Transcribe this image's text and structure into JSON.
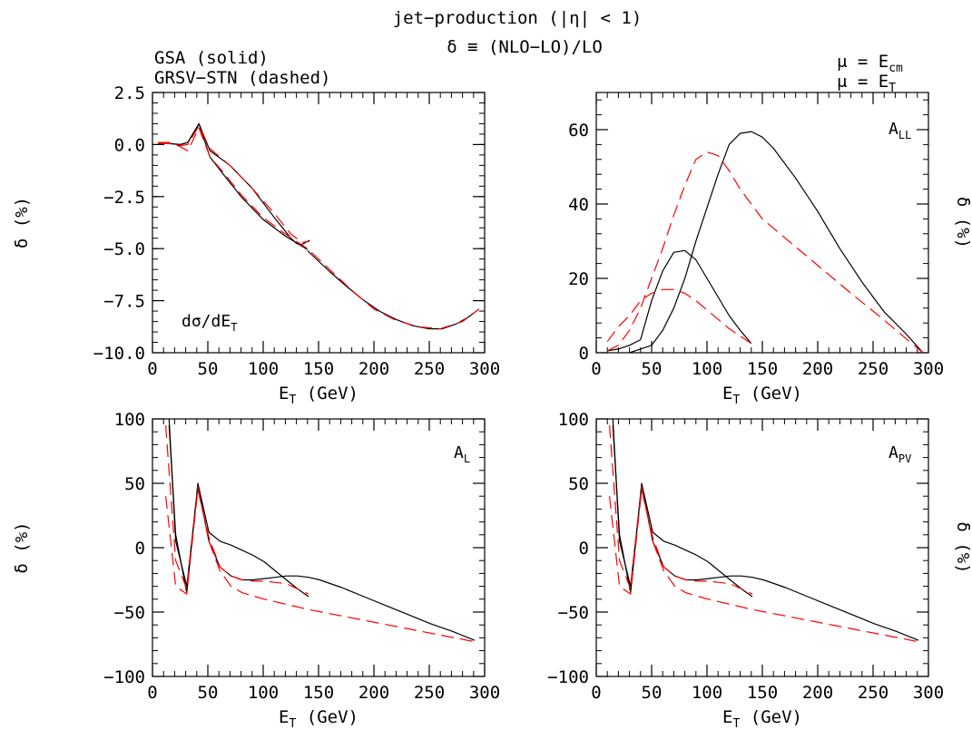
{
  "header": {
    "title": "jet−production (|η| < 1)",
    "definition": "δ ≡ (NLO−LO)/LO",
    "legend_solid": "GSA (solid)",
    "legend_dashed": "GRSV−STN (dashed)",
    "mu_line1_prefix": "μ = E",
    "mu_line1_sub": "cm",
    "mu_line2_prefix": "μ = E",
    "mu_line2_sub": "T"
  },
  "colors": {
    "solid": "#000000",
    "dashed": "#ff0000"
  },
  "chart_data": [
    {
      "type": "line",
      "panel": "top-left",
      "annotation_main": "dσ/dE",
      "annotation_sub": "T",
      "xlabel_main": "E",
      "xlabel_sub": "T",
      "xlabel_rest": " (GeV)",
      "ylabel": "δ (%)",
      "xlim": [
        0,
        300
      ],
      "ylim": [
        -10,
        2.5
      ],
      "xticks": [
        0,
        50,
        100,
        150,
        200,
        250,
        300
      ],
      "xtick_labels": [
        "0",
        "50",
        "100",
        "150",
        "200",
        "250",
        "300"
      ],
      "yticks": [
        -10,
        -7.5,
        -5,
        -2.5,
        0,
        2.5
      ],
      "ytick_labels": [
        "−10.0",
        "−7.5",
        "−5.0",
        "−2.5",
        "0.0",
        "2.5"
      ],
      "minor_x": 10,
      "minor_y": 0.5,
      "series": [
        {
          "style": "solid",
          "x": [
            5,
            15,
            25,
            32,
            42,
            52,
            70,
            90,
            110,
            125,
            130,
            135,
            142
          ],
          "y": [
            0.05,
            0.05,
            0.0,
            0.1,
            1.0,
            -0.3,
            -1.0,
            -2.1,
            -3.5,
            -4.5,
            -4.75,
            -4.8,
            -4.6
          ]
        },
        {
          "style": "solid",
          "x": [
            140,
            150,
            160,
            175,
            190,
            205,
            220,
            235,
            250,
            262,
            275,
            285,
            295
          ],
          "y": [
            -5.1,
            -5.6,
            -6.1,
            -6.8,
            -7.45,
            -8.0,
            -8.4,
            -8.7,
            -8.85,
            -8.85,
            -8.6,
            -8.3,
            -7.9
          ]
        },
        {
          "style": "solid",
          "x": [
            5,
            15,
            25,
            32,
            42,
            52,
            65,
            80,
            100,
            120,
            140
          ],
          "y": [
            0.05,
            0.05,
            0.0,
            0.1,
            1.0,
            -0.6,
            -1.5,
            -2.5,
            -3.6,
            -4.4,
            -5.05
          ]
        },
        {
          "style": "dashed",
          "x": [
            5,
            15,
            25,
            32,
            42,
            52,
            65,
            80,
            100,
            120,
            140,
            160,
            180,
            200,
            220,
            240,
            260,
            280,
            295
          ],
          "y": [
            0.1,
            0.1,
            -0.1,
            -0.3,
            0.8,
            -0.6,
            -1.4,
            -2.4,
            -3.5,
            -4.3,
            -5.0,
            -6.0,
            -7.0,
            -7.9,
            -8.45,
            -8.75,
            -8.85,
            -8.5,
            -7.9
          ]
        },
        {
          "style": "dashed",
          "x": [
            5,
            15,
            25,
            32,
            42,
            52,
            70,
            90,
            110,
            125,
            135,
            142
          ],
          "y": [
            0.05,
            0.05,
            -0.05,
            0.0,
            0.9,
            -0.2,
            -1.0,
            -2.1,
            -3.3,
            -4.3,
            -4.7,
            -4.65
          ]
        }
      ]
    },
    {
      "type": "line",
      "panel": "top-right",
      "annotation_main": "A",
      "annotation_sub": "LL",
      "xlabel_main": "E",
      "xlabel_sub": "T",
      "xlabel_rest": " (GeV)",
      "ylabel": "δ (%)",
      "ylabel_mirrored": true,
      "xlim": [
        0,
        300
      ],
      "ylim": [
        0,
        70
      ],
      "xticks": [
        0,
        50,
        100,
        150,
        200,
        250,
        300
      ],
      "xtick_labels": [
        "0",
        "50",
        "100",
        "150",
        "200",
        "250",
        "300"
      ],
      "yticks": [
        0,
        20,
        40,
        60
      ],
      "ytick_labels": [
        "0",
        "20",
        "40",
        "60"
      ],
      "minor_x": 10,
      "minor_y": 4,
      "series": [
        {
          "style": "solid",
          "x": [
            10,
            20,
            30,
            40,
            50,
            60,
            70,
            80,
            90,
            100,
            110,
            120,
            130,
            140
          ],
          "y": [
            0.5,
            1.0,
            2.0,
            3.5,
            14,
            22,
            27,
            27.5,
            25,
            20,
            15,
            10,
            6,
            2.5
          ]
        },
        {
          "style": "solid",
          "x": [
            30,
            40,
            50,
            60,
            70,
            80,
            90,
            100,
            110,
            120,
            130,
            140,
            150,
            160,
            180,
            200,
            220,
            240,
            260,
            280,
            295
          ],
          "y": [
            0,
            1,
            2,
            6,
            12,
            20,
            30,
            39,
            48,
            56,
            59,
            59.5,
            58,
            55,
            47,
            38,
            28,
            19,
            11,
            5,
            0
          ]
        },
        {
          "style": "dashed",
          "x": [
            10,
            20,
            30,
            40,
            50,
            60,
            70,
            80,
            90,
            100,
            110,
            120,
            130,
            140
          ],
          "y": [
            3,
            7,
            10,
            14,
            16,
            17,
            17,
            16,
            14,
            11.5,
            9,
            6.5,
            4.5,
            2.5
          ]
        },
        {
          "style": "dashed",
          "x": [
            10,
            20,
            30,
            40,
            50,
            60,
            70,
            80,
            90,
            100,
            110,
            120,
            130,
            140,
            150,
            170,
            190,
            210,
            230,
            255,
            275,
            295
          ],
          "y": [
            0.5,
            2,
            6,
            12,
            20,
            28,
            37,
            45,
            52,
            54,
            53,
            49,
            44,
            40,
            36,
            31,
            26,
            21,
            16,
            10,
            5,
            0
          ]
        }
      ]
    },
    {
      "type": "line",
      "panel": "bottom-left",
      "annotation_main": "A",
      "annotation_sub": "L",
      "xlabel_main": "E",
      "xlabel_sub": "T",
      "xlabel_rest": " (GeV)",
      "ylabel": "δ (%)",
      "xlim": [
        0,
        300
      ],
      "ylim": [
        -100,
        100
      ],
      "xticks": [
        0,
        50,
        100,
        150,
        200,
        250,
        300
      ],
      "xtick_labels": [
        "0",
        "50",
        "100",
        "150",
        "200",
        "250",
        "300"
      ],
      "yticks": [
        -100,
        -50,
        0,
        50,
        100
      ],
      "ytick_labels": [
        "−100",
        "−50",
        "0",
        "50",
        "100"
      ],
      "minor_x": 10,
      "minor_y": 10,
      "series": [
        {
          "style": "solid",
          "x": [
            15,
            21,
            31,
            41,
            51,
            61,
            71,
            81,
            91,
            101,
            111,
            121,
            131,
            141
          ],
          "y": [
            95,
            10,
            -35,
            50,
            12,
            5,
            2,
            -2,
            -6,
            -11,
            -18,
            -25,
            -32,
            -38
          ]
        },
        {
          "style": "solid",
          "x": [
            15,
            21,
            31,
            41,
            51,
            61,
            71,
            81,
            91,
            101,
            111,
            121,
            131,
            141,
            151,
            171,
            191,
            211,
            231,
            251,
            271,
            291
          ],
          "y": [
            100,
            5,
            -30,
            48,
            5,
            -15,
            -22,
            -25,
            -25,
            -24,
            -23,
            -22,
            -22,
            -23,
            -25,
            -31,
            -38,
            -45,
            -52,
            -59,
            -65,
            -72
          ]
        },
        {
          "style": "dashed",
          "x": [
            12,
            21,
            31,
            41,
            51,
            61,
            71,
            81,
            91,
            101,
            111,
            121,
            131,
            141
          ],
          "y": [
            40,
            -30,
            -36,
            45,
            8,
            -15,
            -22,
            -25,
            -26,
            -26,
            -27,
            -28,
            -32,
            -36
          ]
        },
        {
          "style": "dashed",
          "x": [
            12,
            21,
            31,
            41,
            51,
            61,
            71,
            81,
            101,
            121,
            141,
            171,
            201,
            231,
            261,
            291
          ],
          "y": [
            95,
            -10,
            -32,
            47,
            5,
            -18,
            -30,
            -35,
            -40,
            -44,
            -48,
            -53,
            -58,
            -63,
            -68,
            -73
          ]
        }
      ]
    },
    {
      "type": "line",
      "panel": "bottom-right",
      "annotation_main": "A",
      "annotation_sub": "PV",
      "xlabel_main": "E",
      "xlabel_sub": "T",
      "xlabel_rest": " (GeV)",
      "ylabel": "δ (%)",
      "ylabel_mirrored": true,
      "xlim": [
        0,
        300
      ],
      "ylim": [
        -100,
        100
      ],
      "xticks": [
        0,
        50,
        100,
        150,
        200,
        250,
        300
      ],
      "xtick_labels": [
        "0",
        "50",
        "100",
        "150",
        "200",
        "250",
        "300"
      ],
      "yticks": [
        -100,
        -50,
        0,
        50,
        100
      ],
      "ytick_labels": [
        "−100",
        "−50",
        "0",
        "50",
        "100"
      ],
      "minor_x": 10,
      "minor_y": 10,
      "series": [
        {
          "style": "solid",
          "x": [
            15,
            21,
            31,
            41,
            51,
            61,
            71,
            81,
            91,
            101,
            111,
            121,
            131,
            141
          ],
          "y": [
            95,
            10,
            -35,
            50,
            12,
            5,
            2,
            -2,
            -6,
            -11,
            -18,
            -25,
            -32,
            -38
          ]
        },
        {
          "style": "solid",
          "x": [
            15,
            21,
            31,
            41,
            51,
            61,
            71,
            81,
            91,
            101,
            111,
            121,
            131,
            141,
            151,
            171,
            191,
            211,
            231,
            251,
            271,
            291
          ],
          "y": [
            100,
            5,
            -30,
            48,
            5,
            -15,
            -22,
            -25,
            -25,
            -24,
            -23,
            -22,
            -22,
            -23,
            -25,
            -31,
            -38,
            -45,
            -52,
            -59,
            -65,
            -72
          ]
        },
        {
          "style": "dashed",
          "x": [
            12,
            21,
            31,
            41,
            51,
            61,
            71,
            81,
            91,
            101,
            111,
            121,
            131,
            141
          ],
          "y": [
            40,
            -30,
            -36,
            45,
            8,
            -15,
            -22,
            -25,
            -26,
            -26,
            -27,
            -28,
            -32,
            -36
          ]
        },
        {
          "style": "dashed",
          "x": [
            12,
            21,
            31,
            41,
            51,
            61,
            71,
            81,
            101,
            121,
            141,
            171,
            201,
            231,
            261,
            291
          ],
          "y": [
            95,
            -10,
            -32,
            47,
            5,
            -18,
            -30,
            -35,
            -40,
            -44,
            -48,
            -53,
            -58,
            -63,
            -68,
            -73
          ]
        }
      ]
    }
  ]
}
